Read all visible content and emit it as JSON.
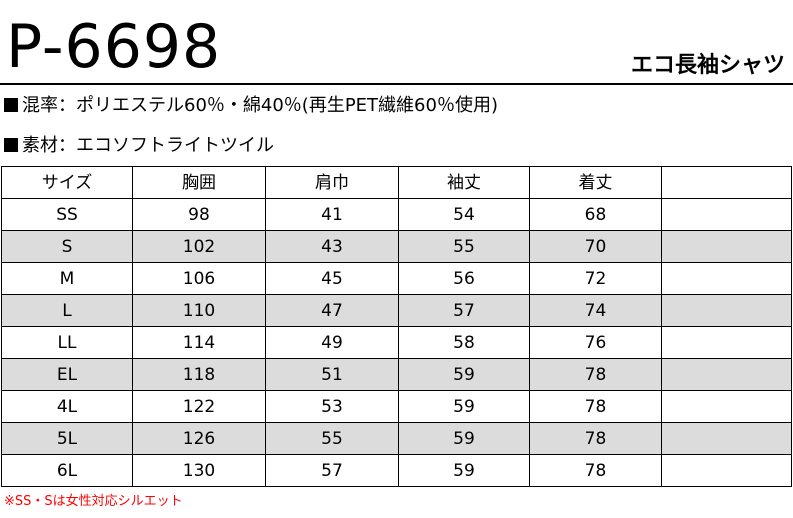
{
  "product": {
    "code": "P-6698",
    "name": "エコ長袖シャツ"
  },
  "specs": {
    "material": "混率：ポリエステル60％・綿40％(再生PET繊維60％使用)",
    "fabric": "素材：エコソフトライトツイル"
  },
  "table": {
    "headers": [
      "サイズ",
      "胸囲",
      "肩巾",
      "袖丈",
      "着丈",
      ""
    ],
    "rows": [
      [
        "SS",
        "98",
        "41",
        "54",
        "68",
        ""
      ],
      [
        "S",
        "102",
        "43",
        "55",
        "70",
        ""
      ],
      [
        "M",
        "106",
        "45",
        "56",
        "72",
        ""
      ],
      [
        "L",
        "110",
        "47",
        "57",
        "74",
        ""
      ],
      [
        "LL",
        "114",
        "49",
        "58",
        "76",
        ""
      ],
      [
        "EL",
        "118",
        "51",
        "59",
        "78",
        ""
      ],
      [
        "4L",
        "122",
        "53",
        "59",
        "78",
        ""
      ],
      [
        "5L",
        "126",
        "55",
        "59",
        "78",
        ""
      ],
      [
        "6L",
        "130",
        "57",
        "59",
        "78",
        ""
      ]
    ],
    "shaded_row_color": "#dcdcdc"
  },
  "footnote": {
    "text": "※SS・Sは女性対応シルエット",
    "color": "#ff0000"
  }
}
